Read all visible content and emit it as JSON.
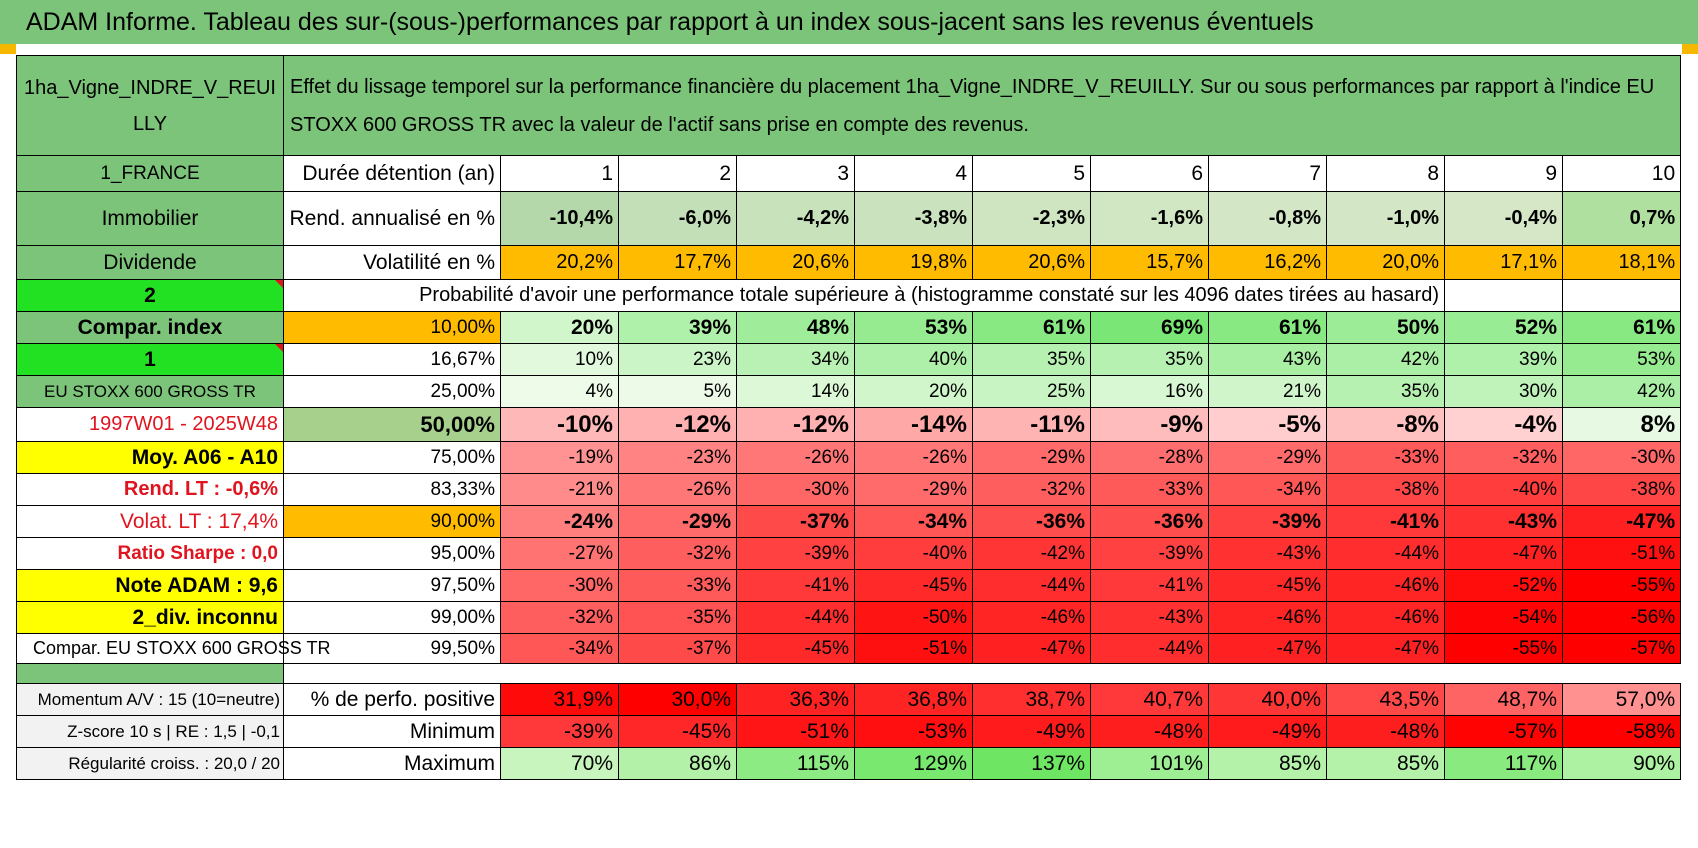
{
  "title": "ADAM Informe. Tableau des sur-(sous-)performances par rapport à un index sous-jacent sans les revenus éventuels",
  "header": {
    "asset": "1ha_Vigne_INDRE_V_REUILLY",
    "asset_line1": "1ha_Vigne_INDRE_V_REUI",
    "asset_line2": "LLY",
    "description": "Effet du lissage temporel sur la performance financière du placement 1ha_Vigne_INDRE_V_REUILLY. Sur ou sous performances par rapport à l'indice EU STOXX 600 GROSS TR avec la valeur de l'actif sans prise en compte des revenus."
  },
  "side": {
    "country": "1_FRANCE",
    "category": "Immobilier",
    "dividend": "Dividende",
    "selector1": "2",
    "compar_index": "Compar. index",
    "selector2": "1",
    "index_name": "EU STOXX 600 GROSS TR",
    "period": "1997W01 - 2025W48",
    "moy": "Moy. A06 - A10",
    "rend_lt": "Rend. LT :    -0,6%",
    "volat_lt": "Volat. LT :    17,4%",
    "sharpe": "Ratio Sharpe :     0,0",
    "note": "Note ADAM : 9,6",
    "div": "2_div. inconnu",
    "compar_full": "Compar. EU STOXX 600 GROSS TR",
    "momentum": "Momentum A/V : 15 (10=neutre)",
    "zscore": "Z-score 10 s | RE : 1,5 | -0,1",
    "regularite": "Régularité croiss. : 20,0 / 20"
  },
  "labels": {
    "duree": "Durée détention (an)",
    "rend": "Rend. annualisé en %",
    "volat": "Volatilité en %",
    "proba": "Probabilité d'avoir une performance totale supérieure à (histogramme constaté sur les 4096 dates tirées au hasard)",
    "pct_pos": "% de perfo. positive",
    "minimum": "Minimum",
    "maximum": "Maximum"
  },
  "years": [
    "1",
    "2",
    "3",
    "4",
    "5",
    "6",
    "7",
    "8",
    "9",
    "10"
  ],
  "rend": [
    "-10,4%",
    "-6,0%",
    "-4,2%",
    "-3,8%",
    "-2,3%",
    "-1,6%",
    "-0,8%",
    "-1,0%",
    "-0,4%",
    "0,7%"
  ],
  "volat": [
    "20,2%",
    "17,7%",
    "20,6%",
    "19,8%",
    "20,6%",
    "15,7%",
    "16,2%",
    "20,0%",
    "17,1%",
    "18,1%"
  ],
  "quantiles": [
    {
      "q": "10,00%",
      "vals": [
        "20%",
        "39%",
        "48%",
        "53%",
        "61%",
        "69%",
        "61%",
        "50%",
        "52%",
        "61%"
      ]
    },
    {
      "q": "16,67%",
      "vals": [
        "10%",
        "23%",
        "34%",
        "40%",
        "35%",
        "35%",
        "43%",
        "42%",
        "39%",
        "53%"
      ]
    },
    {
      "q": "25,00%",
      "vals": [
        "4%",
        "5%",
        "14%",
        "20%",
        "25%",
        "16%",
        "21%",
        "35%",
        "30%",
        "42%"
      ]
    },
    {
      "q": "50,00%",
      "vals": [
        "-10%",
        "-12%",
        "-12%",
        "-14%",
        "-11%",
        "-9%",
        "-5%",
        "-8%",
        "-4%",
        "8%"
      ]
    },
    {
      "q": "75,00%",
      "vals": [
        "-19%",
        "-23%",
        "-26%",
        "-26%",
        "-29%",
        "-28%",
        "-29%",
        "-33%",
        "-32%",
        "-30%"
      ]
    },
    {
      "q": "83,33%",
      "vals": [
        "-21%",
        "-26%",
        "-30%",
        "-29%",
        "-32%",
        "-33%",
        "-34%",
        "-38%",
        "-40%",
        "-38%"
      ]
    },
    {
      "q": "90,00%",
      "vals": [
        "-24%",
        "-29%",
        "-37%",
        "-34%",
        "-36%",
        "-36%",
        "-39%",
        "-41%",
        "-43%",
        "-47%"
      ]
    },
    {
      "q": "95,00%",
      "vals": [
        "-27%",
        "-32%",
        "-39%",
        "-40%",
        "-42%",
        "-39%",
        "-43%",
        "-44%",
        "-47%",
        "-51%"
      ]
    },
    {
      "q": "97,50%",
      "vals": [
        "-30%",
        "-33%",
        "-41%",
        "-45%",
        "-44%",
        "-41%",
        "-45%",
        "-46%",
        "-52%",
        "-55%"
      ]
    },
    {
      "q": "99,00%",
      "vals": [
        "-32%",
        "-35%",
        "-44%",
        "-50%",
        "-46%",
        "-43%",
        "-46%",
        "-46%",
        "-54%",
        "-56%"
      ]
    },
    {
      "q": "99,50%",
      "vals": [
        "-34%",
        "-37%",
        "-45%",
        "-51%",
        "-47%",
        "-44%",
        "-47%",
        "-47%",
        "-55%",
        "-57%"
      ]
    }
  ],
  "pct_pos": [
    "31,9%",
    "30,0%",
    "36,3%",
    "36,8%",
    "38,7%",
    "40,7%",
    "40,0%",
    "43,5%",
    "48,7%",
    "57,0%"
  ],
  "minimum": [
    "-39%",
    "-45%",
    "-51%",
    "-53%",
    "-49%",
    "-48%",
    "-49%",
    "-48%",
    "-57%",
    "-58%"
  ],
  "maximum": [
    "70%",
    "86%",
    "115%",
    "129%",
    "137%",
    "101%",
    "85%",
    "85%",
    "117%",
    "90%"
  ],
  "colors": {
    "header_green": "#7cc47a",
    "orange": "#ffbb00",
    "red_text": "#e0141e",
    "yellow": "#ffff00",
    "bright_green": "#22e022"
  }
}
